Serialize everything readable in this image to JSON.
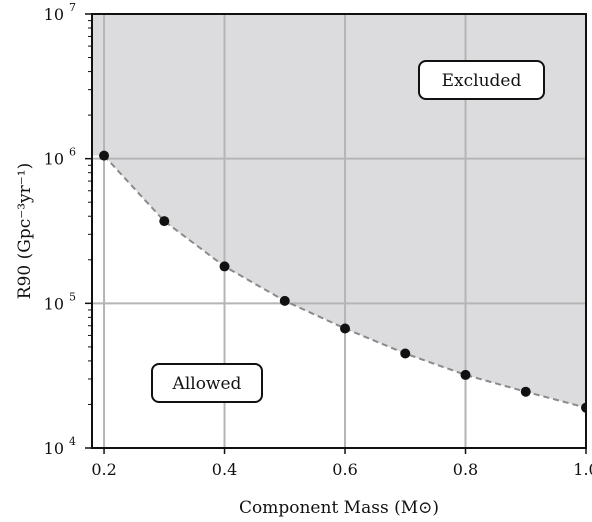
{
  "chart_data": {
    "type": "scatter",
    "xlabel": "Component Mass (M⊙)",
    "ylabel": "R90 (Gpc⁻³yr⁻¹)",
    "x": [
      0.2,
      0.3,
      0.4,
      0.5,
      0.6,
      0.7,
      0.8,
      0.9,
      1.0
    ],
    "y": [
      1050000,
      370000,
      180000,
      104000,
      67000,
      45000,
      32000,
      24500,
      19000
    ],
    "xlim": [
      0.18,
      1.0
    ],
    "ylim": [
      10000,
      10000000
    ],
    "yscale": "log",
    "x_ticks": [
      "0.2",
      "0.4",
      "0.6",
      "0.8",
      "1.0"
    ],
    "x_tick_values": [
      0.2,
      0.4,
      0.6,
      0.8,
      1.0
    ],
    "y_tick_values": [
      10000,
      100000,
      1000000,
      10000000
    ],
    "y_tick_base": "10",
    "y_tick_exponents": [
      "4",
      "5",
      "6",
      "7"
    ],
    "grid": true,
    "fit_line": "dashed",
    "excluded_fill": "#dcdcdf",
    "grid_color": "#b5b5b5",
    "marker_color": "#111111",
    "fit_color": "#8a8a8a",
    "regions": {
      "excluded_label": "Excluded",
      "allowed_label": "Allowed"
    }
  }
}
